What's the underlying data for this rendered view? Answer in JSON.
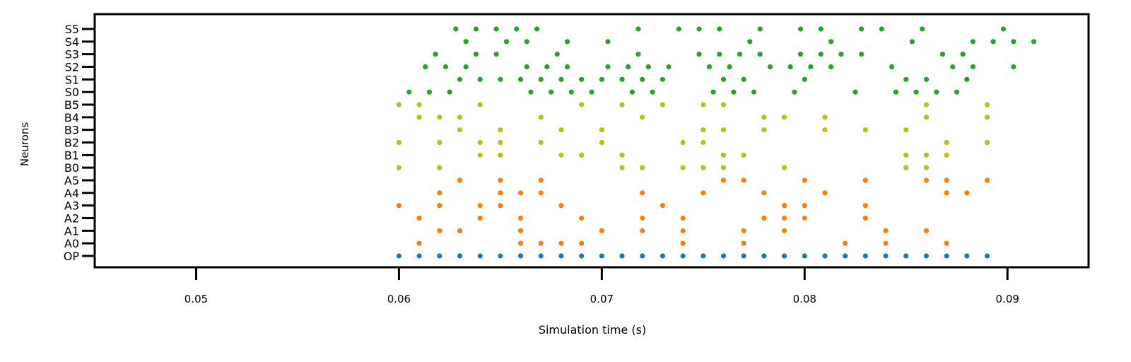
{
  "chart_data": {
    "type": "scatter",
    "title": "",
    "xlabel": "Simulation time (s)",
    "ylabel": "Neurons",
    "xlim": [
      0.045,
      0.094
    ],
    "x_ticks": [
      0.05,
      0.06,
      0.07,
      0.08,
      0.09
    ],
    "x_tick_labels": [
      "0.05",
      "0.06",
      "0.07",
      "0.08",
      "0.09"
    ],
    "neurons": [
      "OP",
      "A0",
      "A1",
      "A2",
      "A3",
      "A4",
      "A5",
      "B0",
      "B1",
      "B2",
      "B3",
      "B4",
      "B5",
      "S0",
      "S1",
      "S2",
      "S3",
      "S4",
      "S5"
    ],
    "grid": false,
    "legend": "none",
    "series": [
      {
        "color": "#1f77b4",
        "points": [
          {
            "n": "OP",
            "t": [
              0.06,
              0.061,
              0.062,
              0.063,
              0.064,
              0.065,
              0.066,
              0.067,
              0.068,
              0.069,
              0.07,
              0.071,
              0.072,
              0.073,
              0.074,
              0.075,
              0.076,
              0.077,
              0.078,
              0.079,
              0.08,
              0.081,
              0.082,
              0.083,
              0.084,
              0.085,
              0.086,
              0.087,
              0.088,
              0.089
            ]
          }
        ]
      },
      {
        "color": "#ff7f0e",
        "points": [
          {
            "n": "A0",
            "t": [
              0.061,
              0.066,
              0.067,
              0.068,
              0.069,
              0.074,
              0.077,
              0.082,
              0.084,
              0.087
            ]
          },
          {
            "n": "A1",
            "t": [
              0.062,
              0.063,
              0.066,
              0.07,
              0.072,
              0.074,
              0.077,
              0.079,
              0.084,
              0.086
            ]
          },
          {
            "n": "A2",
            "t": [
              0.061,
              0.064,
              0.066,
              0.069,
              0.072,
              0.074,
              0.078,
              0.079,
              0.08,
              0.083
            ]
          },
          {
            "n": "A3",
            "t": [
              0.06,
              0.062,
              0.064,
              0.065,
              0.068,
              0.073,
              0.079,
              0.08,
              0.083
            ]
          },
          {
            "n": "A4",
            "t": [
              0.062,
              0.065,
              0.066,
              0.067,
              0.072,
              0.075,
              0.078,
              0.081,
              0.087,
              0.088
            ]
          },
          {
            "n": "A5",
            "t": [
              0.063,
              0.065,
              0.067,
              0.076,
              0.077,
              0.08,
              0.083,
              0.086,
              0.087,
              0.089
            ]
          }
        ]
      },
      {
        "color": "#bcbd22",
        "points": [
          {
            "n": "B0",
            "t": [
              0.06,
              0.062,
              0.071,
              0.072,
              0.074,
              0.075,
              0.076,
              0.079,
              0.085,
              0.086
            ]
          },
          {
            "n": "B1",
            "t": [
              0.064,
              0.065,
              0.068,
              0.069,
              0.071,
              0.076,
              0.077,
              0.085,
              0.086,
              0.087
            ]
          },
          {
            "n": "B2",
            "t": [
              0.06,
              0.062,
              0.064,
              0.065,
              0.067,
              0.07,
              0.074,
              0.075,
              0.087,
              0.089
            ]
          },
          {
            "n": "B3",
            "t": [
              0.063,
              0.065,
              0.068,
              0.07,
              0.075,
              0.076,
              0.078,
              0.081,
              0.083,
              0.085
            ]
          },
          {
            "n": "B4",
            "t": [
              0.061,
              0.062,
              0.063,
              0.067,
              0.072,
              0.078,
              0.079,
              0.081,
              0.086,
              0.089
            ]
          },
          {
            "n": "B5",
            "t": [
              0.06,
              0.061,
              0.064,
              0.069,
              0.071,
              0.073,
              0.075,
              0.076,
              0.086,
              0.089
            ]
          }
        ]
      },
      {
        "color": "#2ca02c",
        "points": [
          {
            "n": "S0",
            "t": [
              0.0605,
              0.0615,
              0.0625,
              0.0665,
              0.0675,
              0.0685,
              0.0695,
              0.0715,
              0.0725,
              0.0755,
              0.0765,
              0.0775,
              0.0795,
              0.0825,
              0.0845,
              0.0855,
              0.0865,
              0.0875
            ]
          },
          {
            "n": "S1",
            "t": [
              0.063,
              0.064,
              0.065,
              0.066,
              0.067,
              0.068,
              0.069,
              0.07,
              0.071,
              0.072,
              0.073,
              0.076,
              0.077,
              0.08,
              0.085,
              0.086,
              0.088
            ]
          },
          {
            "n": "S2",
            "t": [
              0.0613,
              0.0623,
              0.0633,
              0.0663,
              0.0673,
              0.0683,
              0.0703,
              0.0713,
              0.0723,
              0.0733,
              0.0753,
              0.0763,
              0.0783,
              0.0793,
              0.0803,
              0.0813,
              0.0843,
              0.0873,
              0.0883,
              0.0903
            ]
          },
          {
            "n": "S3",
            "t": [
              0.0618,
              0.0638,
              0.0648,
              0.0678,
              0.0718,
              0.0748,
              0.0758,
              0.0768,
              0.0778,
              0.0798,
              0.0808,
              0.0818,
              0.0828,
              0.0868,
              0.0878
            ]
          },
          {
            "n": "S4",
            "t": [
              0.0633,
              0.0653,
              0.0663,
              0.0683,
              0.0703,
              0.0773,
              0.0813,
              0.0853,
              0.0883,
              0.0893,
              0.0903,
              0.0913
            ]
          },
          {
            "n": "S5",
            "t": [
              0.0628,
              0.0638,
              0.0648,
              0.0658,
              0.0668,
              0.0718,
              0.0738,
              0.0748,
              0.0758,
              0.0778,
              0.0798,
              0.0808,
              0.0828,
              0.0838,
              0.0858,
              0.0898
            ]
          }
        ]
      }
    ]
  }
}
